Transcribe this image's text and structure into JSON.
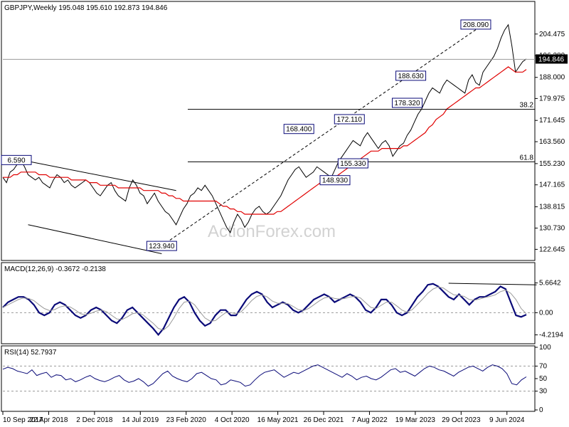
{
  "header": {
    "main": "GBPJPY,Weekly  195.048 195.610 192.873 194.846",
    "macd": "MACD(12,26,9) -0.3672 -0.2138",
    "rsi": "RSI(14) 52.7937"
  },
  "watermark": "ActionForex.com",
  "colors": {
    "price": "#000000",
    "ma": "#e00000",
    "macd": "#0a0a78",
    "signal": "#9a9a9a",
    "annotation_border": "#0a0a78",
    "hline": "#000000"
  },
  "chart_data": [
    {
      "type": "line",
      "panel": "price",
      "ylim": [
        119.5,
        212
      ],
      "y_ticks": [
        "204.475",
        "196.280",
        "188.000",
        "179.975",
        "171.645",
        "163.560",
        "155.230",
        "147.165",
        "138.815",
        "130.730",
        "122.645"
      ],
      "current_price_label": "194.846",
      "annotations": [
        {
          "label": "208.090",
          "x": 131,
          "y": 208.09
        },
        {
          "label": "188.630",
          "x": 113,
          "y": 188.63
        },
        {
          "label": "178.320",
          "x": 112,
          "y": 178.32
        },
        {
          "label": "172.110",
          "x": 96,
          "y": 172.11
        },
        {
          "label": "168.400",
          "x": 82,
          "y": 168.4
        },
        {
          "label": "155.330",
          "x": 97,
          "y": 155.33
        },
        {
          "label": "148.930",
          "x": 92,
          "y": 148.93
        },
        {
          "label": "123.940",
          "x": 44,
          "y": 123.94
        },
        {
          "label": "6.590",
          "x": 0,
          "y": 156.59
        }
      ],
      "fib_labels": [
        {
          "label": "38.2",
          "y": 175.85
        },
        {
          "label": "61.8",
          "y": 155.9
        }
      ],
      "series": [
        {
          "values": [
            150,
            148,
            152,
            153,
            155,
            156.5,
            154,
            151,
            150,
            149,
            150,
            148,
            147,
            146,
            149,
            151,
            150,
            148,
            149,
            147,
            146,
            147,
            148,
            149,
            148,
            146,
            144,
            143,
            145,
            147,
            148,
            145,
            143,
            142,
            141,
            146,
            149,
            147,
            144,
            143,
            140,
            142,
            144,
            141,
            139,
            137,
            136,
            134,
            132,
            135,
            138,
            140,
            143,
            144,
            146,
            145,
            147,
            145,
            143,
            140,
            137,
            134,
            131,
            129,
            133,
            136,
            134,
            131,
            133,
            136,
            138,
            139,
            137,
            136,
            137,
            139,
            141,
            143,
            146,
            149,
            151,
            153,
            154,
            152,
            150,
            151,
            152,
            154,
            153,
            152,
            151,
            150,
            153,
            156,
            158,
            160,
            162,
            164,
            163,
            162,
            165,
            167,
            165,
            163,
            161,
            163,
            164,
            162,
            158,
            160,
            162,
            163,
            166,
            168,
            171,
            174,
            176,
            179,
            182,
            184,
            183,
            182,
            185,
            187,
            186,
            185,
            184,
            183,
            182,
            187,
            189,
            186,
            185,
            190,
            192,
            194,
            196,
            199,
            203,
            206,
            208,
            200,
            190,
            192,
            194,
            195
          ]
        },
        {
          "values": [
            150,
            150,
            150,
            151,
            151,
            152,
            152,
            152,
            152,
            152,
            151,
            151,
            151,
            150,
            150,
            150,
            150,
            150,
            150,
            149,
            149,
            149,
            149,
            149,
            148,
            148,
            148,
            147,
            147,
            147,
            147,
            147,
            146,
            146,
            146,
            146,
            146,
            146,
            146,
            145,
            145,
            145,
            145,
            145,
            144,
            144,
            143,
            143,
            142,
            142,
            141,
            141,
            141,
            141,
            141,
            141,
            141,
            141,
            141,
            141,
            140,
            139,
            139,
            138,
            138,
            137,
            137,
            136,
            136,
            136,
            136,
            136,
            136,
            136,
            136,
            136,
            137,
            137,
            138,
            139,
            140,
            141,
            142,
            143,
            144,
            145,
            146,
            147,
            148,
            148,
            149,
            149,
            150,
            151,
            152,
            153,
            154,
            155,
            156,
            157,
            158,
            159,
            160,
            160,
            160,
            161,
            161,
            161,
            161,
            161,
            161,
            162,
            162,
            163,
            164,
            165,
            166,
            167,
            169,
            170,
            172,
            173,
            174,
            176,
            177,
            178,
            179,
            180,
            181,
            182,
            183,
            184,
            184,
            185,
            186,
            187,
            188,
            189,
            190,
            191,
            192,
            191,
            190,
            190,
            190,
            191
          ]
        }
      ]
    },
    {
      "type": "line",
      "panel": "macd",
      "ylim": [
        -5.5,
        7.5
      ],
      "y_ticks": [
        "5.6642",
        "0.00",
        "-4.2194"
      ],
      "series": [
        {
          "name": "MACD(12,26,9)",
          "values": [
            1,
            2,
            2.5,
            3,
            3,
            2.5,
            1.5,
            0,
            -0.5,
            0,
            1.5,
            2,
            1.5,
            0.5,
            -0.5,
            -1,
            -0.5,
            0.5,
            1,
            0.5,
            -0.5,
            -1.5,
            -2,
            -1,
            0.5,
            1,
            0,
            -1,
            -2,
            -3,
            -4.2,
            -3,
            -1,
            1,
            2.5,
            3,
            2,
            0,
            -1.5,
            -2.5,
            -2,
            -0.5,
            0.5,
            0.5,
            -0.5,
            -0.5,
            1,
            2.5,
            3.5,
            4,
            3.5,
            2,
            1,
            1.5,
            2,
            1.5,
            0.5,
            0,
            0.5,
            1.5,
            2.5,
            3,
            3.5,
            3,
            2,
            2.5,
            3,
            3.5,
            3,
            2,
            0.5,
            0,
            1,
            2.5,
            2.5,
            1.5,
            0,
            -0.5,
            0,
            1.5,
            3,
            4,
            5.3,
            5.5,
            5,
            4,
            3,
            2.5,
            3.5,
            2.5,
            1.5,
            2.5,
            3,
            3,
            3.5,
            4,
            5,
            4.5,
            2,
            -0.5,
            -0.8,
            -0.37
          ]
        },
        {
          "name": "signal",
          "values": [
            1,
            1.5,
            2,
            2.5,
            2.8,
            2.7,
            2.3,
            1.5,
            0.8,
            0.4,
            0.6,
            1.1,
            1.3,
            1.1,
            0.5,
            -0.2,
            -0.4,
            -0.1,
            0.3,
            0.5,
            0.2,
            -0.5,
            -1.2,
            -1.3,
            -0.8,
            -0.2,
            0,
            -0.4,
            -1.2,
            -2,
            -3,
            -3.3,
            -2.5,
            -1,
            0.8,
            2,
            2.2,
            1.5,
            0.2,
            -1,
            -1.6,
            -1.5,
            -0.7,
            0,
            0,
            -0.2,
            0.2,
            1.2,
            2.3,
            3.1,
            3.4,
            3,
            2.2,
            1.8,
            1.8,
            1.7,
            1.2,
            0.6,
            0.4,
            0.8,
            1.5,
            2.2,
            2.8,
            3,
            2.7,
            2.6,
            2.7,
            3,
            3.1,
            2.8,
            1.9,
            1,
            0.8,
            1.4,
            2,
            2,
            1.3,
            0.5,
            0.1,
            0.6,
            1.6,
            2.6,
            3.7,
            4.5,
            4.9,
            4.7,
            4,
            3.4,
            3.3,
            3.1,
            2.5,
            2.4,
            2.6,
            2.9,
            3.1,
            3.4,
            4,
            4.3,
            3.7,
            2.5,
            0.8,
            -0.21
          ]
        }
      ],
      "divergence_line": {
        "from": [
          86,
          5.6
        ],
        "to": [
          103,
          5.3
        ]
      }
    },
    {
      "type": "line",
      "panel": "rsi",
      "ylim": [
        0,
        100
      ],
      "y_ticks": [
        "100",
        "70",
        "50",
        "30",
        "0"
      ],
      "series": [
        {
          "name": "RSI(14)",
          "values": [
            65,
            68,
            66,
            62,
            60,
            58,
            64,
            55,
            58,
            60,
            52,
            56,
            55,
            48,
            50,
            45,
            48,
            52,
            55,
            50,
            47,
            45,
            48,
            52,
            55,
            48,
            44,
            46,
            50,
            45,
            38,
            42,
            50,
            58,
            62,
            54,
            50,
            47,
            45,
            50,
            58,
            60,
            55,
            50,
            48,
            40,
            42,
            48,
            46,
            44,
            38,
            40,
            48,
            55,
            60,
            62,
            64,
            58,
            52,
            56,
            60,
            58,
            62,
            66,
            70,
            72,
            68,
            64,
            60,
            56,
            52,
            58,
            54,
            48,
            52,
            54,
            50,
            48,
            52,
            58,
            64,
            66,
            60,
            62,
            58,
            54,
            60,
            66,
            70,
            68,
            64,
            62,
            58,
            54,
            60,
            64,
            68,
            70,
            66,
            62,
            68,
            72,
            70,
            66,
            58,
            42,
            40,
            48,
            52.79
          ]
        }
      ]
    }
  ],
  "x_labels": [
    "10 Sep 2017",
    "22 Apr 2018",
    "2 Dec 2018",
    "14 Jul 2019",
    "23 Feb 2020",
    "4 Oct 2020",
    "16 May 2021",
    "26 Dec 2021",
    "7 Aug 2022",
    "19 Mar 2023",
    "29 Oct 2023",
    "9 Jun 2024"
  ]
}
